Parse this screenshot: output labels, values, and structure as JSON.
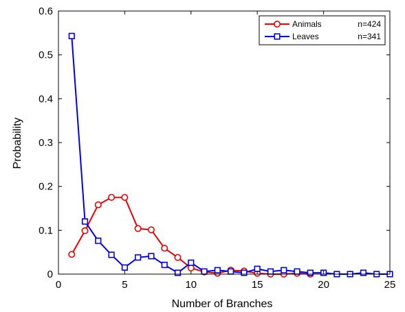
{
  "chart_data": {
    "type": "line",
    "xlabel": "Number of Branches",
    "ylabel": "Probability",
    "xlim": [
      0,
      25
    ],
    "ylim": [
      0,
      0.6
    ],
    "xticks": [
      "0",
      "5",
      "10",
      "15",
      "20",
      "25"
    ],
    "yticks": [
      "0",
      "0.1",
      "0.2",
      "0.3",
      "0.4",
      "0.5",
      "0.6"
    ],
    "grid": false,
    "legend_position": "top-right",
    "series": [
      {
        "name": "Animals",
        "n_label": "n=424",
        "color": "#e60000",
        "marker": "circle",
        "x": [
          1,
          2,
          3,
          4,
          5,
          6,
          7,
          8,
          9,
          10,
          11,
          12,
          13,
          14,
          15,
          16,
          17,
          18,
          19
        ],
        "y": [
          0.045,
          0.099,
          0.158,
          0.175,
          0.175,
          0.104,
          0.101,
          0.059,
          0.038,
          0.014,
          0.005,
          0.002,
          0.009,
          0.007,
          0.002,
          0.0,
          0.0,
          0.002,
          0.0
        ]
      },
      {
        "name": "Leaves",
        "n_label": "n=341",
        "color": "#0000e6",
        "marker": "square",
        "x": [
          1,
          2,
          3,
          4,
          5,
          6,
          7,
          8,
          9,
          10,
          11,
          12,
          13,
          14,
          15,
          16,
          17,
          18,
          19,
          20,
          21,
          22,
          23,
          24,
          25
        ],
        "y": [
          0.543,
          0.12,
          0.076,
          0.044,
          0.015,
          0.038,
          0.041,
          0.021,
          0.003,
          0.026,
          0.006,
          0.009,
          0.006,
          0.003,
          0.012,
          0.006,
          0.009,
          0.006,
          0.003,
          0.003,
          0.0,
          0.0,
          0.003,
          0.0,
          0.0
        ]
      }
    ]
  }
}
